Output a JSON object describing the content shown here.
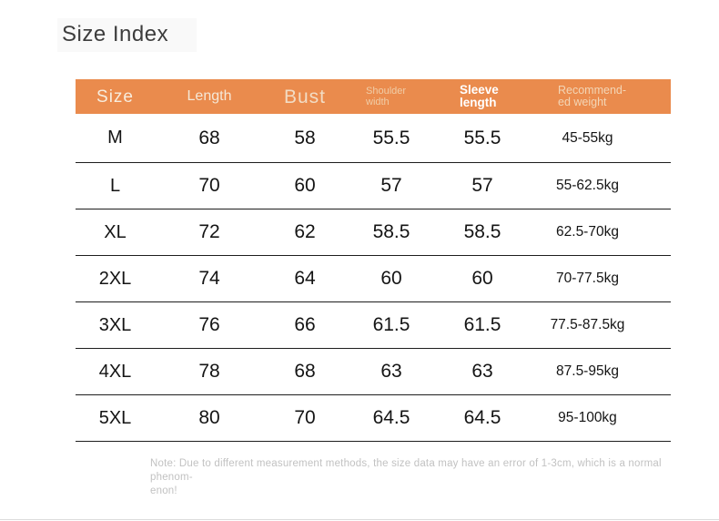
{
  "page": {
    "title": "Size Index"
  },
  "table": {
    "accent_color": "#EA8B4D",
    "headers": [
      {
        "line1": "Size"
      },
      {
        "line1": "Length"
      },
      {
        "line1": "Bust"
      },
      {
        "line1": "Shoulder",
        "line2": "width"
      },
      {
        "line1": "Sleeve",
        "line2": "length"
      },
      {
        "line1": "Recommend-",
        "line2": "ed weight"
      }
    ],
    "rows": [
      {
        "cells": [
          "M",
          "68",
          "58",
          "55.5",
          "55.5",
          "45-55kg"
        ]
      },
      {
        "cells": [
          "L",
          "70",
          "60",
          "57",
          "57",
          "55-62.5kg"
        ]
      },
      {
        "cells": [
          "XL",
          "72",
          "62",
          "58.5",
          "58.5",
          "62.5-70kg"
        ]
      },
      {
        "cells": [
          "2XL",
          "74",
          "64",
          "60",
          "60",
          "70-77.5kg"
        ]
      },
      {
        "cells": [
          "3XL",
          "76",
          "66",
          "61.5",
          "61.5",
          "77.5-87.5kg"
        ]
      },
      {
        "cells": [
          "4XL",
          "78",
          "68",
          "63",
          "63",
          "87.5-95kg"
        ]
      },
      {
        "cells": [
          "5XL",
          "80",
          "70",
          "64.5",
          "64.5",
          "95-100kg"
        ]
      }
    ]
  },
  "note": {
    "line1": "Note: Due to different measurement methods, the size data may have an error of 1-3cm, which is a normal phenom-",
    "line2": "enon!"
  }
}
